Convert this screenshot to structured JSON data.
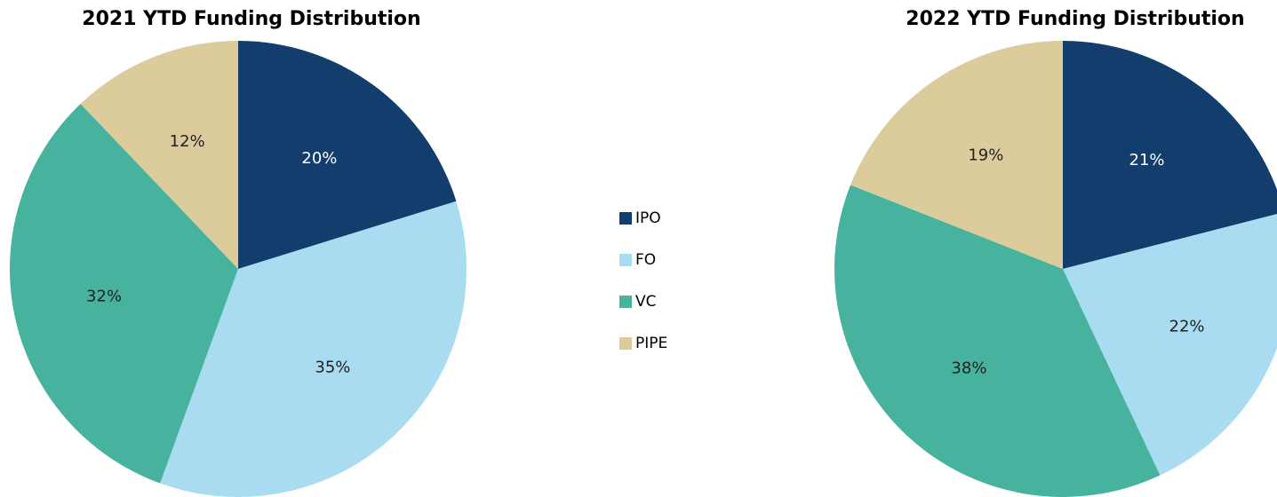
{
  "chart_data": [
    {
      "type": "pie",
      "title": "2021 YTD Funding Distribution",
      "categories": [
        "IPO",
        "FO",
        "VC",
        "PIPE"
      ],
      "values": [
        20,
        35,
        32,
        12
      ],
      "value_labels": [
        "20%",
        "35%",
        "32%",
        "12%"
      ],
      "colors": [
        "#123d6c",
        "#a9dcf1",
        "#47b29d",
        "#dccb9b"
      ]
    },
    {
      "type": "pie",
      "title": "2022 YTD Funding Distribution",
      "categories": [
        "IPO",
        "FO",
        "VC",
        "PIPE"
      ],
      "values": [
        21,
        22,
        38,
        19
      ],
      "value_labels": [
        "21%",
        "22%",
        "38%",
        "19%"
      ],
      "colors": [
        "#123d6c",
        "#a9dcf1",
        "#47b29d",
        "#dccb9b"
      ]
    }
  ]
}
